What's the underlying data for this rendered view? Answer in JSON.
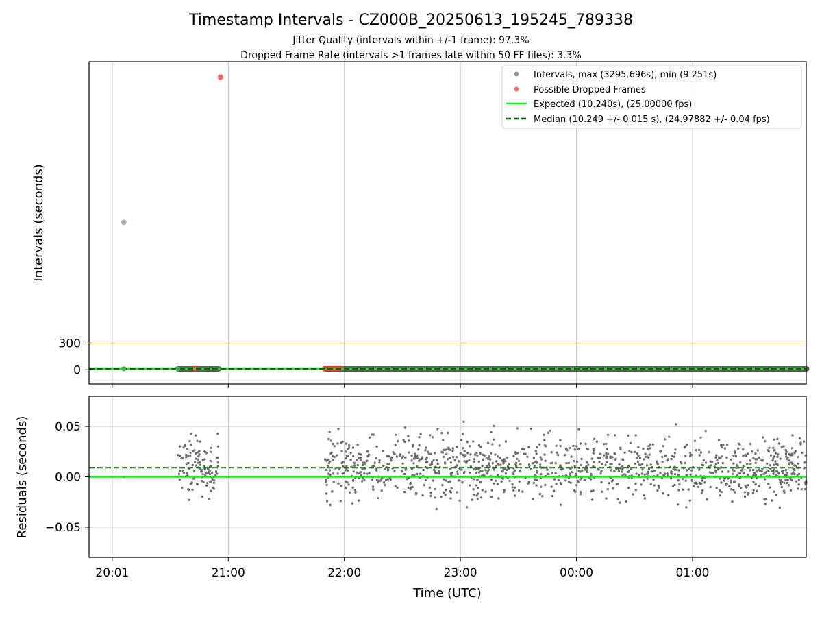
{
  "colors": {
    "interval": "#a0a0a0",
    "dropped": "#ff3030",
    "expected": "#11ee11",
    "median": "#006400",
    "residual": "#6e6e6e",
    "threshold": "#ffc870",
    "grid": "#c8c8c8"
  },
  "chart_data": [
    {
      "type": "scatter",
      "title": "Timestamp Intervals - CZ000B_20250613_195245_789338",
      "subtitle_1": "Jitter Quality (intervals within +/-1 frame): 97.3%",
      "subtitle_2": "Dropped Frame Rate (intervals >1 frames late within 50 FF files): 3.3%",
      "ylabel": "Intervals (seconds)",
      "y_ticks": [
        0,
        300
      ],
      "y_tick_labels": [
        "0",
        "300"
      ],
      "ylim": [
        -160,
        3470
      ],
      "xlim_hours": [
        19.8,
        25.98
      ],
      "grid": "vertical",
      "legend_position": "top-right",
      "legend": [
        "Intervals, max (3295.696s), min (9.251s)",
        "Possible Dropped Frames",
        "Expected (10.240s), (25.00000 fps)",
        "Median (10.249 +/- 0.015 s), (24.97882 +/- 0.04 fps)"
      ],
      "threshold_line": 300,
      "expected_line": 10.24,
      "median_line": 10.249,
      "outlier_points": [
        {
          "t_utc": "20:06",
          "interval": 1660,
          "kind": "interval"
        },
        {
          "t_utc": "20:56",
          "interval": 3295.696,
          "kind": "dropped"
        }
      ],
      "interval_clusters": [
        {
          "from_utc": "20:34",
          "to_utc": "20:55",
          "interval": 10.25
        },
        {
          "from_utc": "21:50",
          "to_utc": "25:59",
          "interval": 10.25
        }
      ],
      "dropped_points": [
        {
          "t_utc": "20:43",
          "interval": 12
        },
        {
          "t_utc": "21:50",
          "interval": 12
        },
        {
          "t_utc": "21:52",
          "interval": 12
        },
        {
          "t_utc": "21:54",
          "interval": 12
        },
        {
          "t_utc": "21:56",
          "interval": 12
        },
        {
          "t_utc": "21:58",
          "interval": 12
        }
      ]
    },
    {
      "type": "scatter",
      "ylabel": "Residuals (seconds)",
      "xlabel": "Time (UTC)",
      "ylim": [
        -0.08,
        0.08
      ],
      "y_ticks": [
        -0.05,
        0.0,
        0.05
      ],
      "y_tick_labels": [
        "−0.05",
        "0.00",
        "0.05"
      ],
      "x_ticks_hours": [
        20,
        21,
        22,
        23,
        24,
        25
      ],
      "x_tick_labels": [
        "20:01",
        "21:00",
        "22:00",
        "23:00",
        "00:00",
        "01:00"
      ],
      "xlim_hours": [
        19.8,
        25.98
      ],
      "grid": "both",
      "expected_residual": 0.0,
      "median_residual": 0.009,
      "residual_clusters": [
        {
          "from_utc": "20:34",
          "to_utc": "20:55",
          "center": 0.01,
          "spread": 0.022,
          "count": 110
        },
        {
          "from_utc": "21:50",
          "to_utc": "25:59",
          "center": 0.009,
          "spread": 0.024,
          "count": 1180
        }
      ]
    }
  ]
}
